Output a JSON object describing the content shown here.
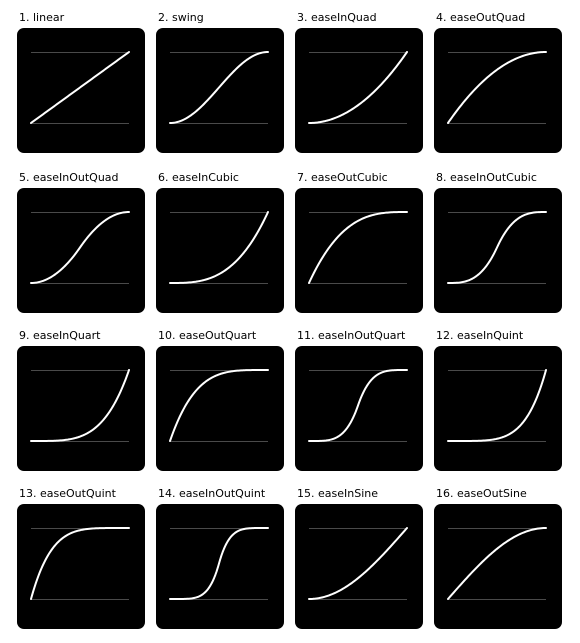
{
  "colors": {
    "background": "#ffffff",
    "tile": "#000000",
    "curve": "#ffffff",
    "guide": "#4a4a4a",
    "label": "#000000"
  },
  "easings": [
    {
      "label": "1. linear",
      "fn": "linear"
    },
    {
      "label": "2. swing",
      "fn": "swing"
    },
    {
      "label": "3. easeInQuad",
      "fn": "easeInQuad"
    },
    {
      "label": "4. easeOutQuad",
      "fn": "easeOutQuad"
    },
    {
      "label": "5. easeInOutQuad",
      "fn": "easeInOutQuad"
    },
    {
      "label": "6. easeInCubic",
      "fn": "easeInCubic"
    },
    {
      "label": "7. easeOutCubic",
      "fn": "easeOutCubic"
    },
    {
      "label": "8. easeInOutCubic",
      "fn": "easeInOutCubic"
    },
    {
      "label": "9. easeInQuart",
      "fn": "easeInQuart"
    },
    {
      "label": "10. easeOutQuart",
      "fn": "easeOutQuart"
    },
    {
      "label": "11. easeInOutQuart",
      "fn": "easeInOutQuart"
    },
    {
      "label": "12. easeInQuint",
      "fn": "easeInQuint"
    },
    {
      "label": "13. easeOutQuint",
      "fn": "easeOutQuint"
    },
    {
      "label": "14. easeInOutQuint",
      "fn": "easeInOutQuint"
    },
    {
      "label": "15. easeInSine",
      "fn": "easeInSine"
    },
    {
      "label": "16. easeOutSine",
      "fn": "easeOutSine"
    }
  ]
}
